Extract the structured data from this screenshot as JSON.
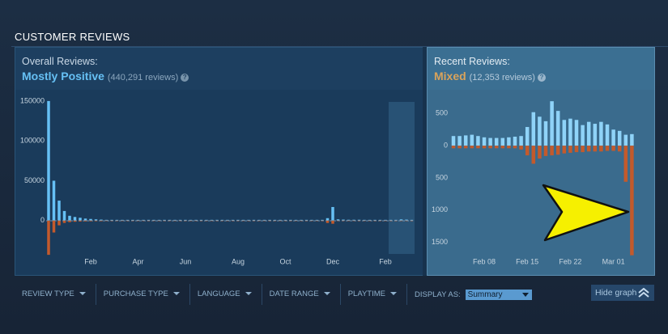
{
  "header": {
    "title": "CUSTOMER REVIEWS"
  },
  "overall": {
    "label": "Overall Reviews:",
    "rating": "Mostly Positive",
    "count": "(440,291 reviews)",
    "help": "?"
  },
  "recent": {
    "label": "Recent Reviews:",
    "rating": "Mixed",
    "count": "(12,353 reviews)",
    "help": "?"
  },
  "filters": {
    "items": [
      "REVIEW TYPE",
      "PURCHASE TYPE",
      "LANGUAGE",
      "DATE RANGE",
      "PLAYTIME"
    ],
    "display_as": "DISPLAY AS:",
    "display_value": "Summary",
    "hide_graph": "Hide graph"
  },
  "chart_data": [
    {
      "type": "bar",
      "categories": [
        null,
        null,
        null,
        null,
        null,
        null,
        null,
        null,
        "Feb",
        null,
        null,
        null,
        null,
        null,
        null,
        null,
        null,
        "Apr",
        null,
        null,
        null,
        null,
        null,
        null,
        null,
        null,
        "Jun",
        null,
        null,
        null,
        null,
        null,
        null,
        null,
        null,
        null,
        "Aug",
        null,
        null,
        null,
        null,
        null,
        null,
        null,
        null,
        "Oct",
        null,
        null,
        null,
        null,
        null,
        null,
        null,
        null,
        "Dec",
        null,
        null,
        null,
        null,
        null,
        null,
        null,
        null,
        null,
        "Feb",
        null,
        null,
        null,
        null,
        null
      ],
      "series": [
        {
          "color": "#66c0f4",
          "values": [
            150000,
            50000,
            25000,
            12000,
            6000,
            4500,
            3500,
            2500,
            2000,
            1500,
            1200,
            900,
            900,
            900,
            900,
            900,
            900,
            900,
            900,
            900,
            900,
            900,
            900,
            900,
            900,
            900,
            900,
            900,
            900,
            900,
            900,
            900,
            900,
            900,
            900,
            900,
            900,
            900,
            900,
            900,
            900,
            900,
            900,
            900,
            900,
            900,
            900,
            900,
            900,
            900,
            900,
            900,
            900,
            3000,
            17000,
            1500,
            1200,
            1000,
            1000,
            1000,
            900,
            900,
            900,
            900,
            900,
            900,
            900,
            1500,
            1200,
            900
          ]
        },
        {
          "color": "#c35a2c",
          "values": [
            -43000,
            -15000,
            -6000,
            -3000,
            -2000,
            -1500,
            -1200,
            -1000,
            -900,
            -800,
            -800,
            -600,
            -600,
            -600,
            -600,
            -600,
            -600,
            -600,
            -600,
            -600,
            -600,
            -600,
            -600,
            -600,
            -600,
            -600,
            -600,
            -600,
            -600,
            -600,
            -600,
            -600,
            -600,
            -600,
            -600,
            -600,
            -600,
            -600,
            -600,
            -600,
            -600,
            -600,
            -600,
            -600,
            -600,
            -600,
            -600,
            -600,
            -600,
            -600,
            -600,
            -600,
            -600,
            -3000,
            -4000,
            -600,
            -600,
            -600,
            -600,
            -600,
            -600,
            -600,
            -600,
            -600,
            -600,
            -600,
            -600,
            -600,
            -600,
            -600
          ]
        }
      ],
      "ylim": [
        -50000,
        157000
      ],
      "yticks": [
        0,
        50000,
        100000,
        150000
      ]
    },
    {
      "type": "bar",
      "categories": [
        null,
        null,
        null,
        null,
        null,
        "Feb 08",
        null,
        null,
        null,
        null,
        null,
        null,
        "Feb 15",
        null,
        null,
        null,
        null,
        null,
        null,
        "Feb 22",
        null,
        null,
        null,
        null,
        null,
        null,
        "Mar 01",
        null,
        null,
        null
      ],
      "series": [
        {
          "color": "#8fd3f8",
          "values": [
            150,
            150,
            160,
            170,
            150,
            130,
            120,
            120,
            120,
            130,
            140,
            150,
            290,
            520,
            450,
            380,
            690,
            540,
            400,
            420,
            400,
            320,
            370,
            340,
            370,
            330,
            250,
            230,
            170,
            180
          ]
        },
        {
          "color": "#c35a2c",
          "values": [
            -40,
            -40,
            -40,
            -40,
            -40,
            -40,
            -40,
            -40,
            -40,
            -40,
            -40,
            -60,
            -150,
            -280,
            -200,
            -160,
            -150,
            -140,
            -120,
            -110,
            -100,
            -100,
            -90,
            -90,
            -90,
            -80,
            -80,
            -90,
            -560,
            -1700
          ]
        }
      ],
      "ylim": [
        -1780,
        780
      ],
      "yticks": [
        {
          "value": -1500,
          "label": "1500"
        },
        {
          "value": -1000,
          "label": "1000"
        },
        {
          "value": -500,
          "label": "500"
        },
        0,
        500
      ]
    }
  ]
}
